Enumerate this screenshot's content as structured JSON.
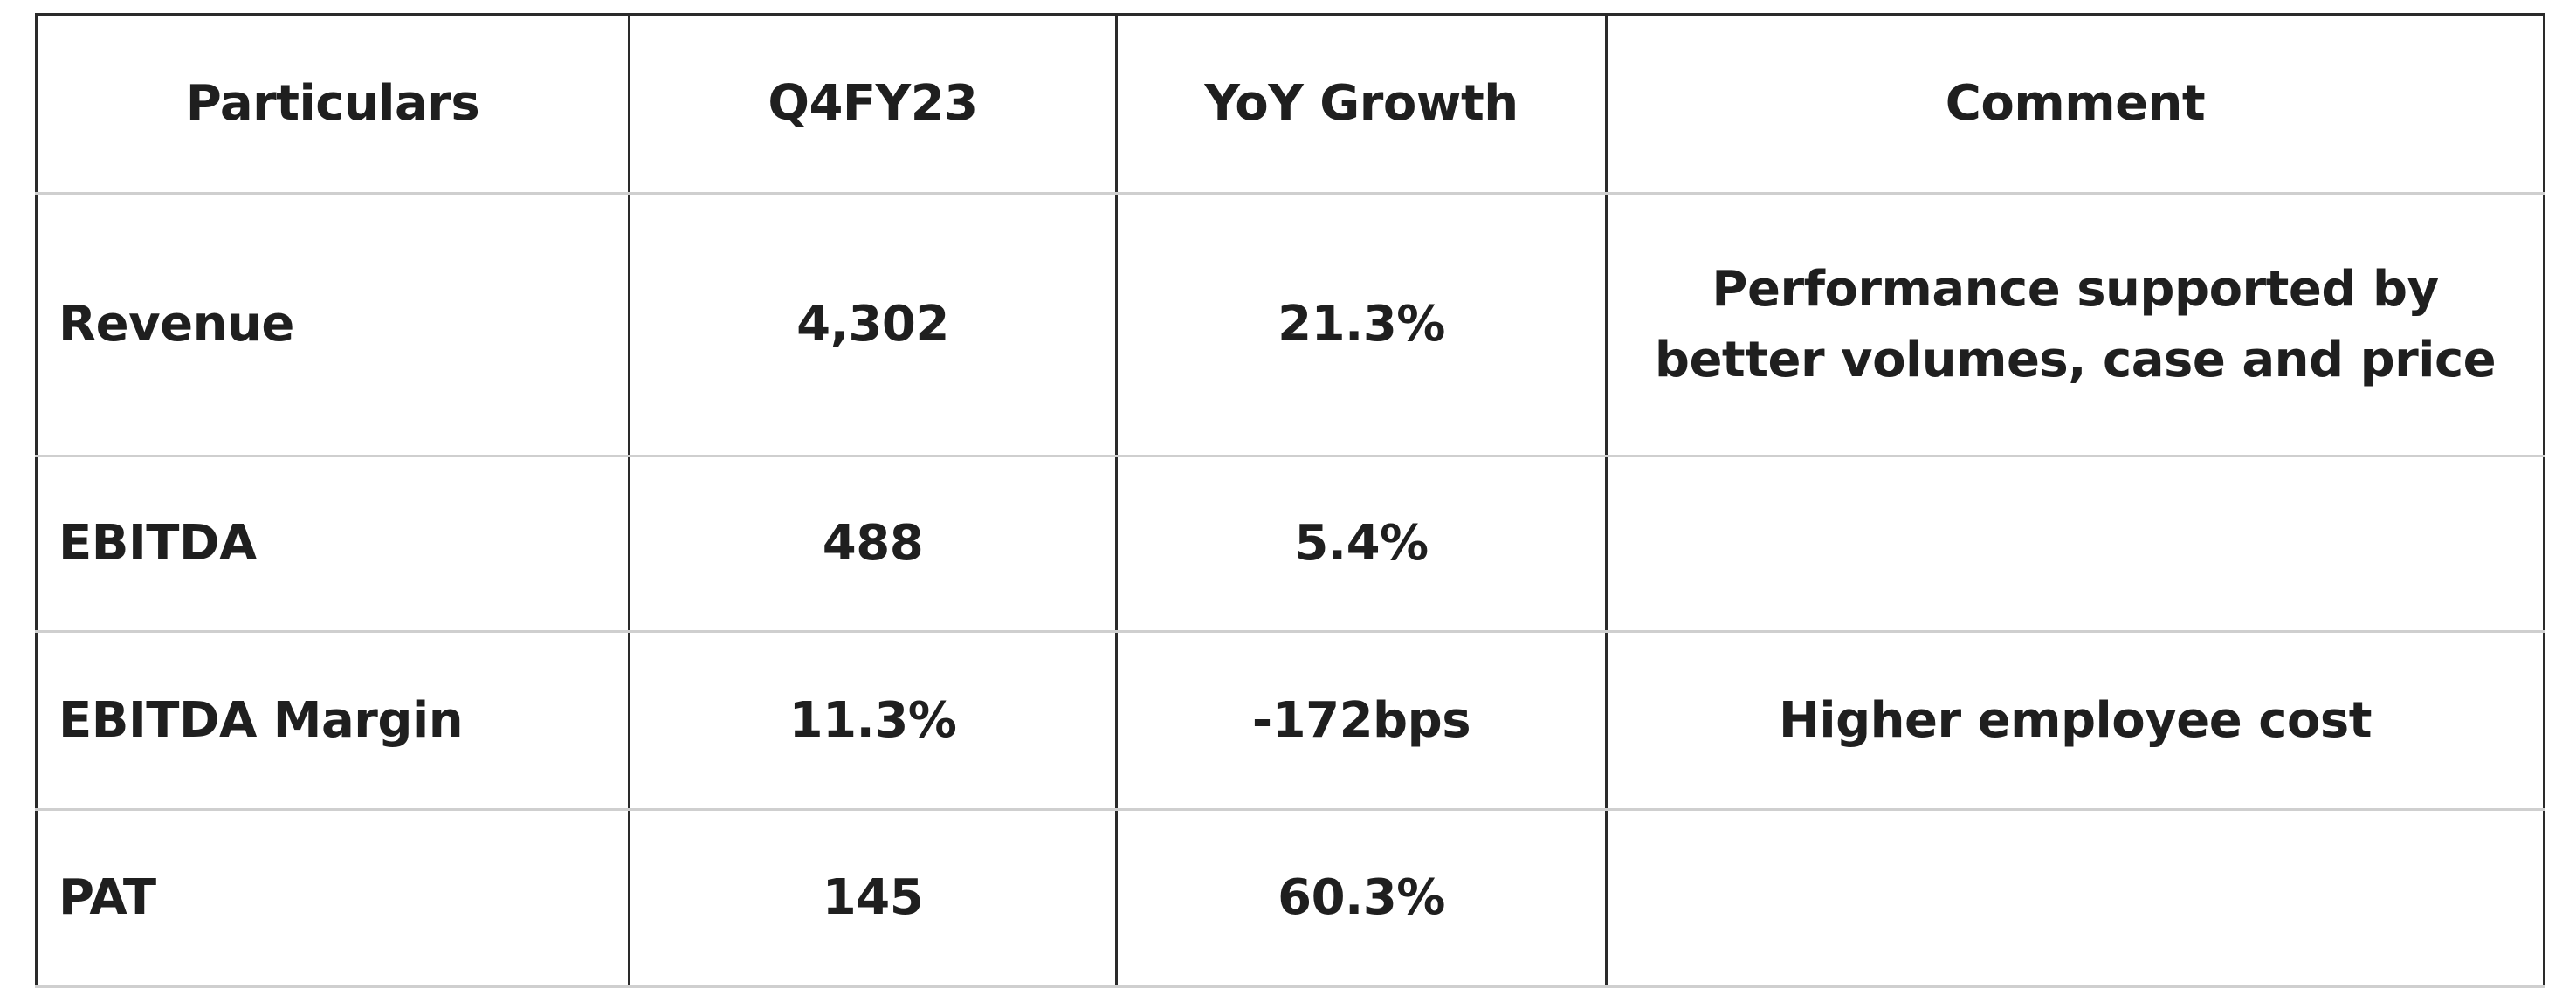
{
  "table": {
    "header": [
      "Particulars",
      "Q4FY23",
      "YoY Growth",
      "Comment"
    ],
    "rows": [
      [
        "Revenue",
        "4,302",
        "21.3%",
        "Performance supported by better volumes, case and price"
      ],
      [
        "EBITDA",
        "488",
        "5.4%"
      ],
      [
        "EBITDA Margin",
        "11.3%",
        "-172bps",
        "Higher employee cost"
      ],
      [
        "PAT",
        "145",
        "60.3%"
      ]
    ]
  }
}
